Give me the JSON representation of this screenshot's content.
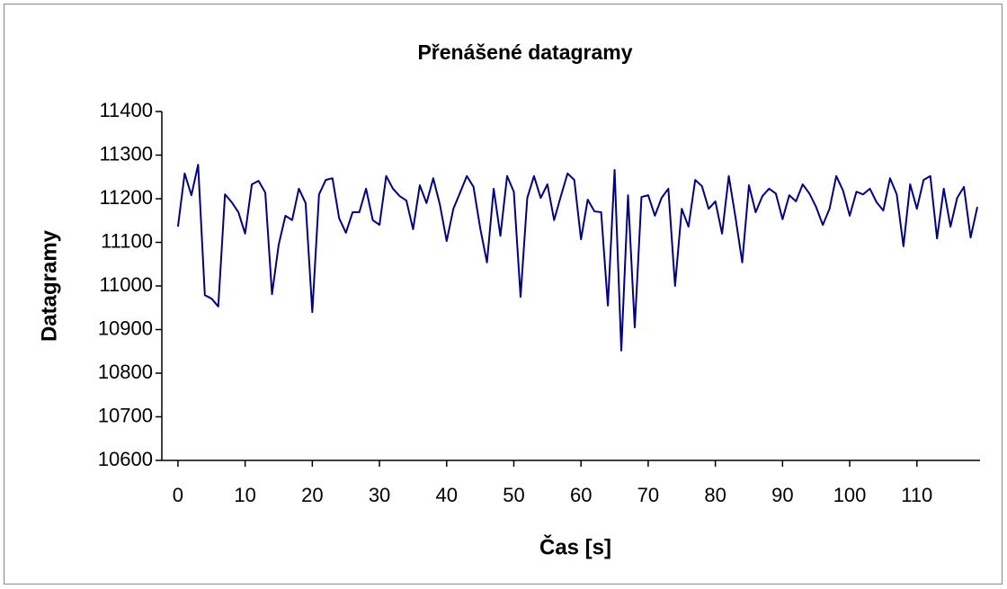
{
  "chart_data": {
    "type": "line",
    "title": "Přenášené datagramy",
    "x_label": "Čas [s]",
    "y_label": "Datagramy",
    "x": [
      0,
      1,
      2,
      3,
      4,
      5,
      6,
      7,
      8,
      9,
      10,
      11,
      12,
      13,
      14,
      15,
      16,
      17,
      18,
      19,
      20,
      21,
      22,
      23,
      24,
      25,
      26,
      27,
      28,
      29,
      30,
      31,
      32,
      33,
      34,
      35,
      36,
      37,
      38,
      39,
      40,
      41,
      42,
      43,
      44,
      45,
      46,
      47,
      48,
      49,
      50,
      51,
      52,
      53,
      54,
      55,
      56,
      57,
      58,
      59,
      60,
      61,
      62,
      63,
      64,
      65,
      66,
      67,
      68,
      69,
      70,
      71,
      72,
      73,
      74,
      75,
      76,
      77,
      78,
      79,
      80,
      81,
      82,
      83,
      84,
      85,
      86,
      87,
      88,
      89,
      90,
      91,
      92,
      93,
      94,
      95,
      96,
      97,
      98,
      99,
      100,
      101,
      102,
      103,
      104,
      105,
      106,
      107,
      108,
      109,
      110,
      111,
      112,
      113,
      114,
      115,
      116,
      117,
      118,
      119
    ],
    "series": [
      {
        "name": "Datagramy",
        "color": "#000080",
        "values": [
          11136,
          11258,
          11208,
          11278,
          10979,
          10971,
          10953,
          11210,
          11192,
          11169,
          11120,
          11233,
          11241,
          11214,
          10981,
          11095,
          11161,
          11151,
          11223,
          11190,
          10940,
          11210,
          11243,
          11247,
          11155,
          11122,
          11169,
          11169,
          11223,
          11151,
          11140,
          11252,
          11223,
          11206,
          11196,
          11130,
          11231,
          11190,
          11247,
          11186,
          11103,
          11177,
          11214,
          11252,
          11227,
          11132,
          11054,
          11223,
          11115,
          11252,
          11216,
          10975,
          11202,
          11252,
          11202,
          11233,
          11151,
          11206,
          11258,
          11243,
          11107,
          11198,
          11171,
          11169,
          10955,
          11266,
          10852,
          11208,
          10905,
          11204,
          11208,
          11161,
          11202,
          11223,
          11000,
          11177,
          11136,
          11243,
          11229,
          11177,
          11194,
          11120,
          11252,
          11157,
          11054,
          11231,
          11169,
          11206,
          11223,
          11212,
          11153,
          11208,
          11194,
          11233,
          11212,
          11181,
          11140,
          11177,
          11252,
          11219,
          11161,
          11216,
          11210,
          11223,
          11192,
          11173,
          11247,
          11210,
          11091,
          11233,
          11177,
          11243,
          11252,
          11109,
          11223,
          11136,
          11202,
          11227,
          11111,
          11181
        ]
      }
    ],
    "xlim": [
      -2.4,
      119.4
    ],
    "xticks": [
      0,
      10,
      20,
      30,
      40,
      50,
      60,
      70,
      80,
      90,
      100,
      110
    ],
    "ylim": [
      10600,
      11400
    ],
    "yticks": [
      10600,
      10700,
      10800,
      10900,
      11000,
      11100,
      11200,
      11300,
      11400
    ],
    "grid": false
  }
}
